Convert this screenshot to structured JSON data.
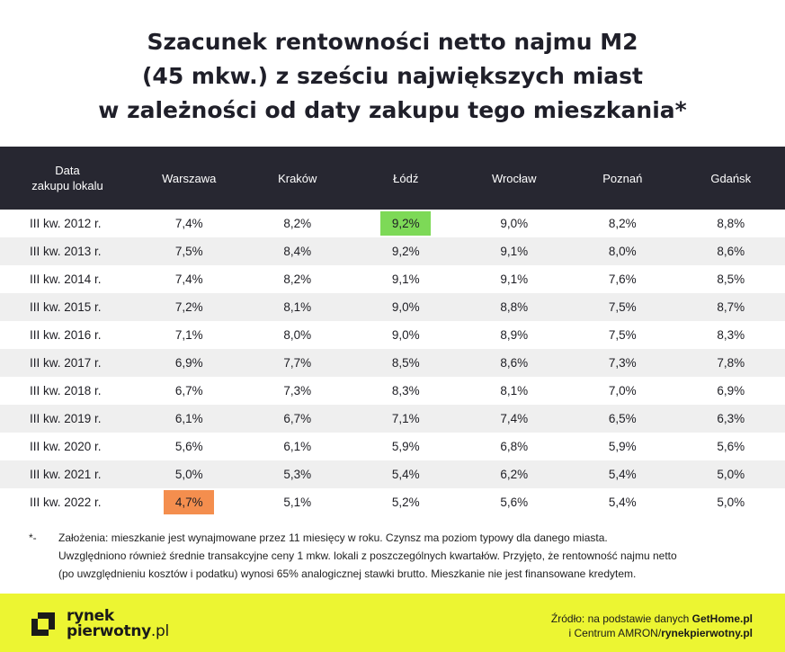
{
  "title": {
    "line1": "Szacunek rentowności netto najmu M2",
    "line2": "(45 mkw.) z sześciu największych miast",
    "line3": "w zależności od daty zakupu tego mieszkania*"
  },
  "colors": {
    "header_bg": "#272731",
    "highlight_max": "#7dd957",
    "highlight_min": "#f48e4e",
    "footer_bg": "#ecf532"
  },
  "chart_data": {
    "type": "table",
    "title": "Szacunek rentowności netto najmu M2 (45 mkw.) z sześciu największych miast w zależności od daty zakupu tego mieszkania*",
    "row_header_line1": "Data",
    "row_header_line2": "zakupu lokalu",
    "columns": [
      "Warszawa",
      "Kraków",
      "Łódź",
      "Wrocław",
      "Poznań",
      "Gdańsk"
    ],
    "rows": [
      {
        "label": "III kw. 2012 r.",
        "values": [
          "7,4%",
          "8,2%",
          "9,2%",
          "9,0%",
          "8,2%",
          "8,8%"
        ]
      },
      {
        "label": "III kw. 2013 r.",
        "values": [
          "7,5%",
          "8,4%",
          "9,2%",
          "9,1%",
          "8,0%",
          "8,6%"
        ]
      },
      {
        "label": "III kw. 2014 r.",
        "values": [
          "7,4%",
          "8,2%",
          "9,1%",
          "9,1%",
          "7,6%",
          "8,5%"
        ]
      },
      {
        "label": "III kw. 2015 r.",
        "values": [
          "7,2%",
          "8,1%",
          "9,0%",
          "8,8%",
          "7,5%",
          "8,7%"
        ]
      },
      {
        "label": "III kw. 2016 r.",
        "values": [
          "7,1%",
          "8,0%",
          "9,0%",
          "8,9%",
          "7,5%",
          "8,3%"
        ]
      },
      {
        "label": "III kw. 2017 r.",
        "values": [
          "6,9%",
          "7,7%",
          "8,5%",
          "8,6%",
          "7,3%",
          "7,8%"
        ]
      },
      {
        "label": "III kw. 2018 r.",
        "values": [
          "6,7%",
          "7,3%",
          "8,3%",
          "8,1%",
          "7,0%",
          "6,9%"
        ]
      },
      {
        "label": "III kw. 2019 r.",
        "values": [
          "6,1%",
          "6,7%",
          "7,1%",
          "7,4%",
          "6,5%",
          "6,3%"
        ]
      },
      {
        "label": "III kw. 2020 r.",
        "values": [
          "5,6%",
          "6,1%",
          "5,9%",
          "6,8%",
          "5,9%",
          "5,6%"
        ]
      },
      {
        "label": "III kw. 2021 r.",
        "values": [
          "5,0%",
          "5,3%",
          "5,4%",
          "6,2%",
          "5,4%",
          "5,0%"
        ]
      },
      {
        "label": "III kw. 2022 r.",
        "values": [
          "4,7%",
          "5,1%",
          "5,2%",
          "5,6%",
          "5,4%",
          "5,0%"
        ]
      }
    ],
    "highlights": [
      {
        "row": 0,
        "col": 2,
        "kind": "max"
      },
      {
        "row": 10,
        "col": 0,
        "kind": "min"
      }
    ]
  },
  "footnote": {
    "mark": "*-",
    "line1": "Założenia: mieszkanie jest wynajmowane przez 11 miesięcy w roku. Czynsz ma poziom typowy dla danego miasta.",
    "line2": "Uwzględniono również średnie transakcyjne ceny 1 mkw. lokali z poszczególnych kwartałów. Przyjęto, że rentowność najmu netto",
    "line3": "(po uwzględnieniu kosztów i podatku) wynosi 65% analogicznej stawki brutto. Mieszkanie nie jest finansowane kredytem."
  },
  "logo": {
    "line1": "rynek",
    "line2_bold": "pierwotny",
    "line2_thin": ".pl"
  },
  "source": {
    "line1_prefix": "Źródło: na podstawie danych ",
    "line1_bold": "GetHome.pl",
    "line2_prefix": "i Centrum AMRON/",
    "line2_bold": "rynekpierwotny.pl"
  }
}
